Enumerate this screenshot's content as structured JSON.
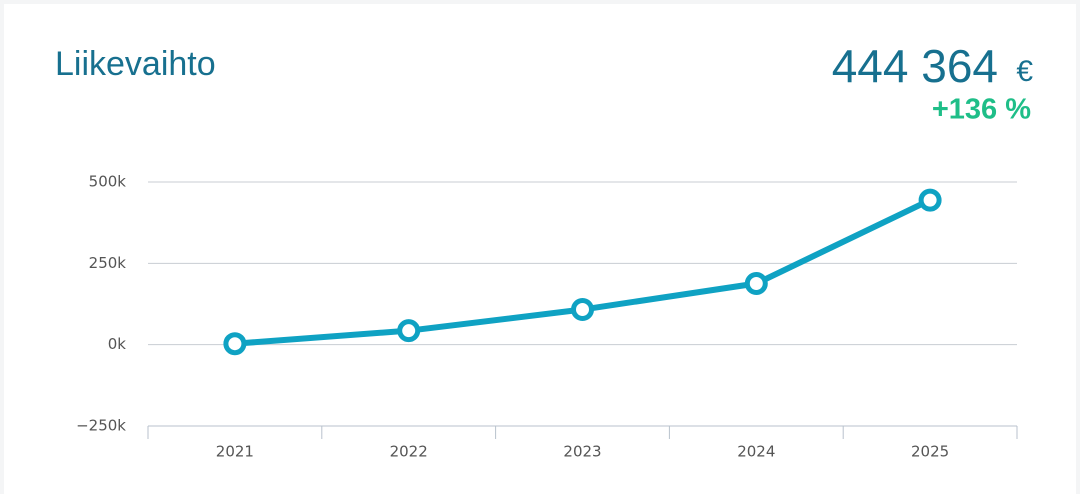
{
  "chart_data": {
    "type": "line",
    "title": "Liikevaihto",
    "headline": {
      "value": "444 364",
      "unit": "€",
      "change": "+136 %"
    },
    "categories": [
      "2021",
      "2022",
      "2023",
      "2024",
      "2025"
    ],
    "series": [
      {
        "name": "Liikevaihto",
        "color": "#0fa2c3",
        "values": [
          3000,
          43000,
          108000,
          188000,
          444364
        ]
      }
    ],
    "ylim": [
      -250000,
      500000
    ],
    "yticks": [
      {
        "value": -250000,
        "label": "−250k"
      },
      {
        "value": 0,
        "label": "0k"
      },
      {
        "value": 250000,
        "label": "250k"
      },
      {
        "value": 500000,
        "label": "500k"
      }
    ],
    "grid": true
  }
}
